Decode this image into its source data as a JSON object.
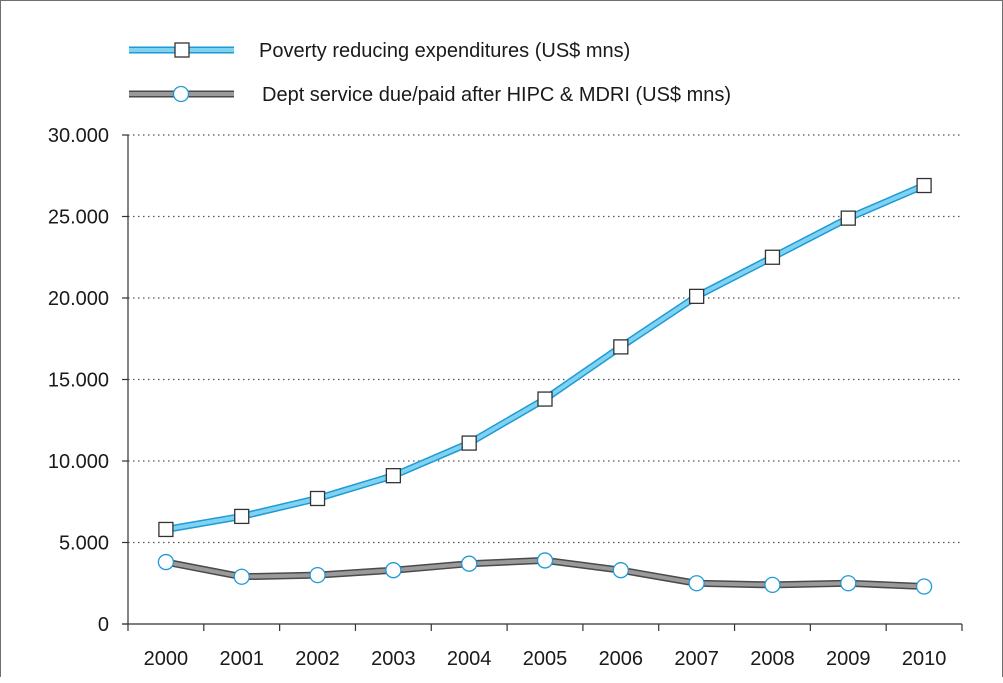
{
  "chart_data": {
    "type": "line",
    "title": "",
    "xlabel": "",
    "ylabel": "",
    "categories": [
      "2000",
      "2001",
      "2002",
      "2003",
      "2004",
      "2005",
      "2006",
      "2007",
      "2008",
      "2009",
      "2010"
    ],
    "y_tick_labels": [
      "0",
      "5.000",
      "10.000",
      "15.000",
      "20.000",
      "25.000",
      "30.000"
    ],
    "y_tick_values": [
      0,
      5000,
      10000,
      15000,
      20000,
      25000,
      30000
    ],
    "ylim": [
      0,
      30000
    ],
    "grid": "horizontal dotted",
    "legend_position": "top-left",
    "series": [
      {
        "name": "Poverty reducing expenditures (US$ mns)",
        "marker": "square",
        "line_color": "#7fd3f0",
        "line_edge_color": "#1e9ad6",
        "marker_fill": "#ffffff",
        "marker_stroke": "#333333",
        "values": [
          5800,
          6600,
          7700,
          9100,
          11100,
          13800,
          17000,
          20100,
          22500,
          24900,
          26900
        ]
      },
      {
        "name": "Dept service due/paid after HIPC & MDRI (US$ mns)",
        "marker": "circle",
        "line_color": "#9a9a9a",
        "line_edge_color": "#4a4a4a",
        "marker_fill": "#ffffff",
        "marker_stroke": "#1e9ad6",
        "values": [
          3800,
          2900,
          3000,
          3300,
          3700,
          3900,
          3300,
          2500,
          2400,
          2500,
          2300
        ]
      }
    ]
  }
}
